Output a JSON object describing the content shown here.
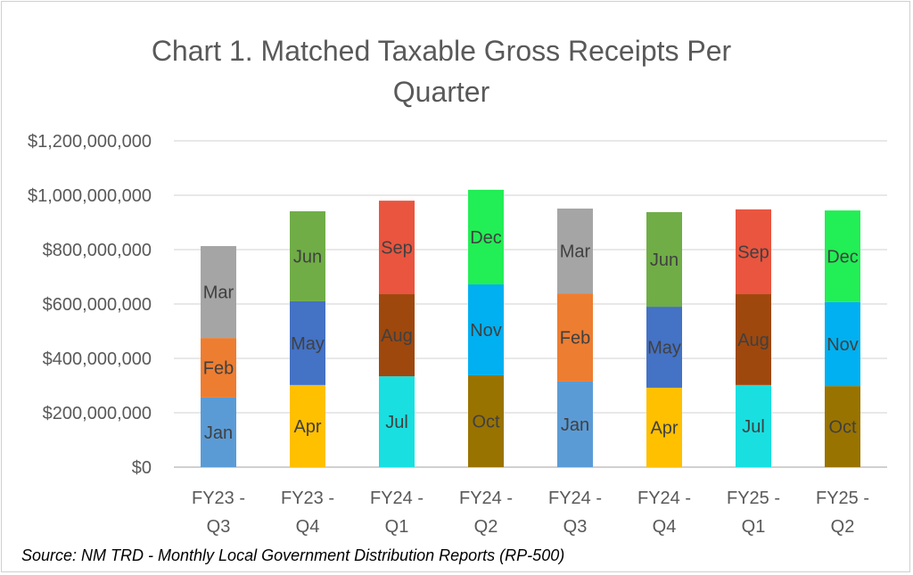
{
  "chart_data": {
    "type": "bar",
    "stacked": true,
    "title": "Chart 1. Matched Taxable Gross Receipts Per Quarter",
    "title_lines": [
      "Chart 1. Matched Taxable Gross Receipts Per",
      "Quarter"
    ],
    "xlabel": "",
    "ylabel": "",
    "ylim": [
      0,
      1200000000
    ],
    "yticks": [
      0,
      200000000,
      400000000,
      600000000,
      800000000,
      1000000000,
      1200000000
    ],
    "ytick_labels": [
      "$0",
      "$200,000,000",
      "$400,000,000",
      "$600,000,000",
      "$800,000,000",
      "$1,000,000,000",
      "$1,200,000,000"
    ],
    "grid": true,
    "legend": "none",
    "categories": [
      [
        "FY23 -",
        "Q3"
      ],
      [
        "FY23 -",
        "Q4"
      ],
      [
        "FY24 -",
        "Q1"
      ],
      [
        "FY24 -",
        "Q2"
      ],
      [
        "FY24 -",
        "Q3"
      ],
      [
        "FY24 -",
        "Q4"
      ],
      [
        "FY25 -",
        "Q1"
      ],
      [
        "FY25 -",
        "Q2"
      ]
    ],
    "bars": [
      {
        "segments": [
          {
            "month": "Jan",
            "value": 256000000
          },
          {
            "month": "Feb",
            "value": 219000000
          },
          {
            "month": "Mar",
            "value": 338000000
          }
        ]
      },
      {
        "segments": [
          {
            "month": "Apr",
            "value": 302000000
          },
          {
            "month": "May",
            "value": 308000000
          },
          {
            "month": "Jun",
            "value": 331000000
          }
        ]
      },
      {
        "segments": [
          {
            "month": "Jul",
            "value": 334000000
          },
          {
            "month": "Aug",
            "value": 302000000
          },
          {
            "month": "Sep",
            "value": 344000000
          }
        ]
      },
      {
        "segments": [
          {
            "month": "Oct",
            "value": 338000000
          },
          {
            "month": "Nov",
            "value": 334000000
          },
          {
            "month": "Dec",
            "value": 348000000
          }
        ]
      },
      {
        "segments": [
          {
            "month": "Jan",
            "value": 315000000
          },
          {
            "month": "Feb",
            "value": 324000000
          },
          {
            "month": "Mar",
            "value": 312000000
          }
        ]
      },
      {
        "segments": [
          {
            "month": "Apr",
            "value": 292000000
          },
          {
            "month": "May",
            "value": 298000000
          },
          {
            "month": "Jun",
            "value": 348000000
          }
        ]
      },
      {
        "segments": [
          {
            "month": "Jul",
            "value": 302000000
          },
          {
            "month": "Aug",
            "value": 334000000
          },
          {
            "month": "Sep",
            "value": 312000000
          }
        ]
      },
      {
        "segments": [
          {
            "month": "Oct",
            "value": 298000000
          },
          {
            "month": "Nov",
            "value": 309000000
          },
          {
            "month": "Dec",
            "value": 337000000
          }
        ]
      }
    ],
    "month_colors": {
      "Jan": "#5b9bd5",
      "Feb": "#ed7d31",
      "Mar": "#a5a5a5",
      "Apr": "#ffc000",
      "May": "#4472c4",
      "Jun": "#70ad47",
      "Jul": "#19dfe0",
      "Aug": "#9e480e",
      "Sep": "#e9553f",
      "Oct": "#997300",
      "Nov": "#00b0f0",
      "Dec": "#22ee55"
    },
    "source": "Source: NM TRD - Monthly Local Government Distribution Reports (RP-500)"
  }
}
